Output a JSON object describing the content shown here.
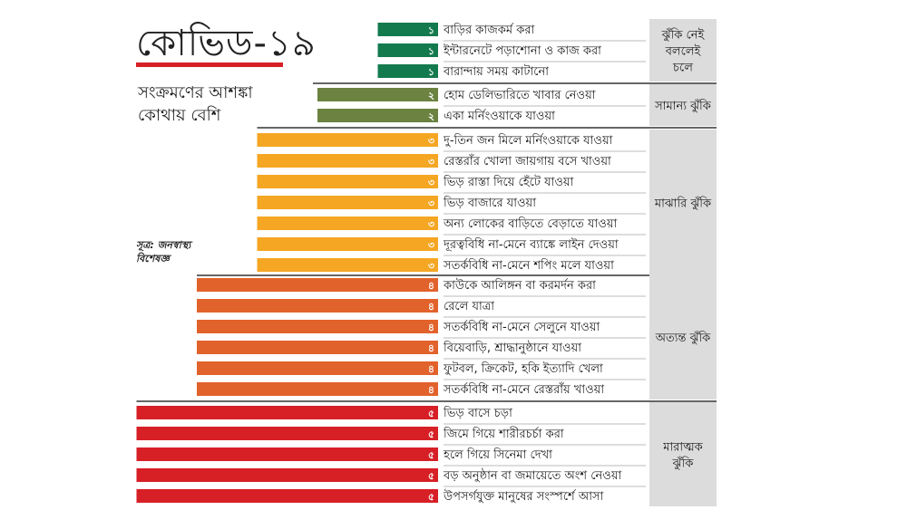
{
  "heading": {
    "title": "কোভিড-১৯",
    "subtitle_line1": "সংক্রমণের আশঙ্কা",
    "subtitle_line2": "কোথায় বেশি",
    "source_line1": "সূত্র: জনস্বাস্থ্য",
    "source_line2": "বিশেষজ্ঞ"
  },
  "chart_data": {
    "type": "bar",
    "orientation": "horizontal",
    "title": "কোভিড-১৯",
    "subtitle": "সংক্রমণের আশঙ্কা কোথায় বেশি",
    "xlim": [
      0,
      5
    ],
    "groups": [
      {
        "level": 1,
        "label_lines": [
          "ঝুঁকি নেই",
          "বললেই",
          "চলে"
        ],
        "color": "#137a4e",
        "items": [
          {
            "label": "বাড়ির কাজকর্ম করা",
            "value": 1,
            "value_label": "১"
          },
          {
            "label": "ইন্টারনেটে পড়াশোনা ও কাজ করা",
            "value": 1,
            "value_label": "১"
          },
          {
            "label": "বারান্দায় সময় কাটানো",
            "value": 1,
            "value_label": "১"
          }
        ]
      },
      {
        "level": 2,
        "label_lines": [
          "সামান্য ঝুঁকি"
        ],
        "color": "#6b8240",
        "items": [
          {
            "label": "হোম ডেলিভারিতে খাবার নেওয়া",
            "value": 2,
            "value_label": "২"
          },
          {
            "label": "একা মর্নিংওয়াকে যাওয়া",
            "value": 2,
            "value_label": "২"
          }
        ]
      },
      {
        "level": 3,
        "label_lines": [
          "মাঝারি ঝুঁকি"
        ],
        "color": "#f5a623",
        "items": [
          {
            "label": "দু-তিন জন মিলে মর্নিংওয়াকে যাওয়া",
            "value": 3,
            "value_label": "৩"
          },
          {
            "label": "রেস্তরাঁর খোলা জায়গায় বসে খাওয়া",
            "value": 3,
            "value_label": "৩"
          },
          {
            "label": "ভিড় রাস্তা দিয়ে হেঁটে যাওয়া",
            "value": 3,
            "value_label": "৩"
          },
          {
            "label": "ভিড় বাজারে যাওয়া",
            "value": 3,
            "value_label": "৩"
          },
          {
            "label": "অন্য লোকের বাড়িতে বেড়াতে যাওয়া",
            "value": 3,
            "value_label": "৩"
          },
          {
            "label": "দূরত্ববিধি না-মেনে ব্যাঙ্কে লাইন দেওয়া",
            "value": 3,
            "value_label": "৩"
          },
          {
            "label": "সতর্কবিধি না-মেনে শপিং মলে যাওয়া",
            "value": 3,
            "value_label": "৩"
          }
        ]
      },
      {
        "level": 4,
        "label_lines": [
          "অত্যন্ত ঝুঁকি"
        ],
        "color": "#e2622b",
        "items": [
          {
            "label": "কাউকে আলিঙ্গন বা করমর্দন করা",
            "value": 4,
            "value_label": "৪"
          },
          {
            "label": "রেলে যাত্রা",
            "value": 4,
            "value_label": "৪"
          },
          {
            "label": "সতর্কবিধি না-মেনে সেলুনে যাওয়া",
            "value": 4,
            "value_label": "৪"
          },
          {
            "label": "বিয়েবাড়ি, শ্রাদ্ধানুষ্ঠানে যাওয়া",
            "value": 4,
            "value_label": "৪"
          },
          {
            "label": "ফুটবল, ক্রিকেট, হকি ইত্যাদি খেলা",
            "value": 4,
            "value_label": "৪"
          },
          {
            "label": "সতর্কবিধি না-মেনে রেস্তরাঁয় খাওয়া",
            "value": 4,
            "value_label": "৪"
          }
        ]
      },
      {
        "level": 5,
        "label_lines": [
          "মারাত্মক",
          "ঝুঁকি"
        ],
        "color": "#d71f26",
        "items": [
          {
            "label": "ভিড় বাসে চড়া",
            "value": 5,
            "value_label": "৫"
          },
          {
            "label": "জিমে গিয়ে শারীরচর্চা করা",
            "value": 5,
            "value_label": "৫"
          },
          {
            "label": "হলে গিয়ে সিনেমা দেখা",
            "value": 5,
            "value_label": "৫"
          },
          {
            "label": "বড় অনুষ্ঠান বা জমায়েতে অংশ নেওয়া",
            "value": 5,
            "value_label": "৫"
          },
          {
            "label": "উপসর্গযুক্ত মানুষের সংস্পর্শে আসা",
            "value": 5,
            "value_label": "৫"
          }
        ]
      }
    ]
  }
}
